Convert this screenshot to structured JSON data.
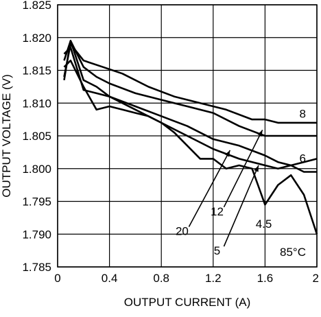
{
  "chart_data": {
    "type": "line",
    "title": "",
    "xlabel": "OUTPUT CURRENT (A)",
    "ylabel": "OUTPUT VOLTAGE (V)",
    "xlim": [
      0,
      2
    ],
    "ylim": [
      1.785,
      1.825
    ],
    "x_ticks": [
      "0",
      "0.4",
      "0.8",
      "1.2",
      "1.6",
      "2"
    ],
    "y_ticks": [
      "1.785",
      "1.790",
      "1.795",
      "1.800",
      "1.805",
      "1.810",
      "1.815",
      "1.820",
      "1.825"
    ],
    "grid": true,
    "annotation": "85°C",
    "series": [
      {
        "name": "8",
        "x": [
          0.05,
          0.1,
          0.2,
          0.35,
          0.5,
          0.7,
          0.9,
          1.1,
          1.3,
          1.5,
          1.6,
          1.7,
          1.8,
          2.0
        ],
        "y": [
          1.814,
          1.819,
          1.8165,
          1.8155,
          1.8145,
          1.8125,
          1.811,
          1.81,
          1.809,
          1.8075,
          1.8075,
          1.807,
          1.807,
          1.807
        ]
      },
      {
        "name": "6",
        "x": [
          0.05,
          0.1,
          0.2,
          0.3,
          0.4,
          0.6,
          0.8,
          1.0,
          1.2,
          1.4,
          1.6,
          1.7,
          1.8,
          2.0
        ],
        "y": [
          1.8135,
          1.8195,
          1.8155,
          1.814,
          1.813,
          1.8115,
          1.8105,
          1.8095,
          1.8085,
          1.8065,
          1.805,
          1.805,
          1.805,
          1.805
        ]
      },
      {
        "name": "4.5",
        "x": [
          0.05,
          0.1,
          0.2,
          0.3,
          0.4,
          0.6,
          0.8,
          1.0,
          1.2,
          1.4,
          1.6,
          1.7,
          1.8,
          1.9,
          2.0
        ],
        "y": [
          1.8165,
          1.8195,
          1.8135,
          1.8125,
          1.811,
          1.8095,
          1.808,
          1.8065,
          1.8045,
          1.8035,
          1.802,
          1.801,
          1.8005,
          1.7995,
          1.7995
        ]
      },
      {
        "name": "12",
        "x": [
          0.05,
          0.1,
          0.2,
          0.3,
          0.4,
          0.6,
          0.8,
          1.0,
          1.2,
          1.4,
          1.6,
          1.7,
          1.8,
          1.9,
          2.0
        ],
        "y": [
          1.8175,
          1.8185,
          1.812,
          1.8115,
          1.811,
          1.809,
          1.807,
          1.805,
          1.803,
          1.8015,
          1.8005,
          1.8,
          1.8005,
          1.801,
          1.8015
        ]
      },
      {
        "name": "20",
        "x": [
          0.05,
          0.1,
          0.2,
          0.3,
          0.4,
          0.5,
          0.6,
          0.7,
          0.8,
          0.9,
          1.0,
          1.1,
          1.2,
          1.3,
          1.4,
          1.5,
          1.6,
          1.7,
          1.8,
          1.9,
          2.0
        ],
        "y": [
          1.8155,
          1.8165,
          1.8125,
          1.809,
          1.8095,
          1.809,
          1.8085,
          1.808,
          1.807,
          1.8055,
          1.8035,
          1.8015,
          1.8015,
          1.8,
          1.8005,
          1.8,
          1.7945,
          1.7975,
          1.799,
          1.796,
          1.79
        ]
      }
    ],
    "leader_labels": [
      {
        "name": "20",
        "label_x": 0.96,
        "label_y": 1.7905,
        "tip_x": 1.33,
        "tip_y": 1.8028
      },
      {
        "name": "12",
        "label_x": 1.23,
        "label_y": 1.7935,
        "tip_x": 1.58,
        "tip_y": 1.8059
      },
      {
        "name": "5",
        "label_x": 1.23,
        "label_y": 1.7875,
        "tip_x": 1.55,
        "tip_y": 1.8005
      }
    ],
    "inline_labels": [
      {
        "name": "8",
        "x": 1.89,
        "y": 1.8084
      },
      {
        "name": "6",
        "x": 1.89,
        "y": 1.8016
      },
      {
        "name": "4.5",
        "x": 1.59,
        "y": 1.7916
      }
    ]
  }
}
